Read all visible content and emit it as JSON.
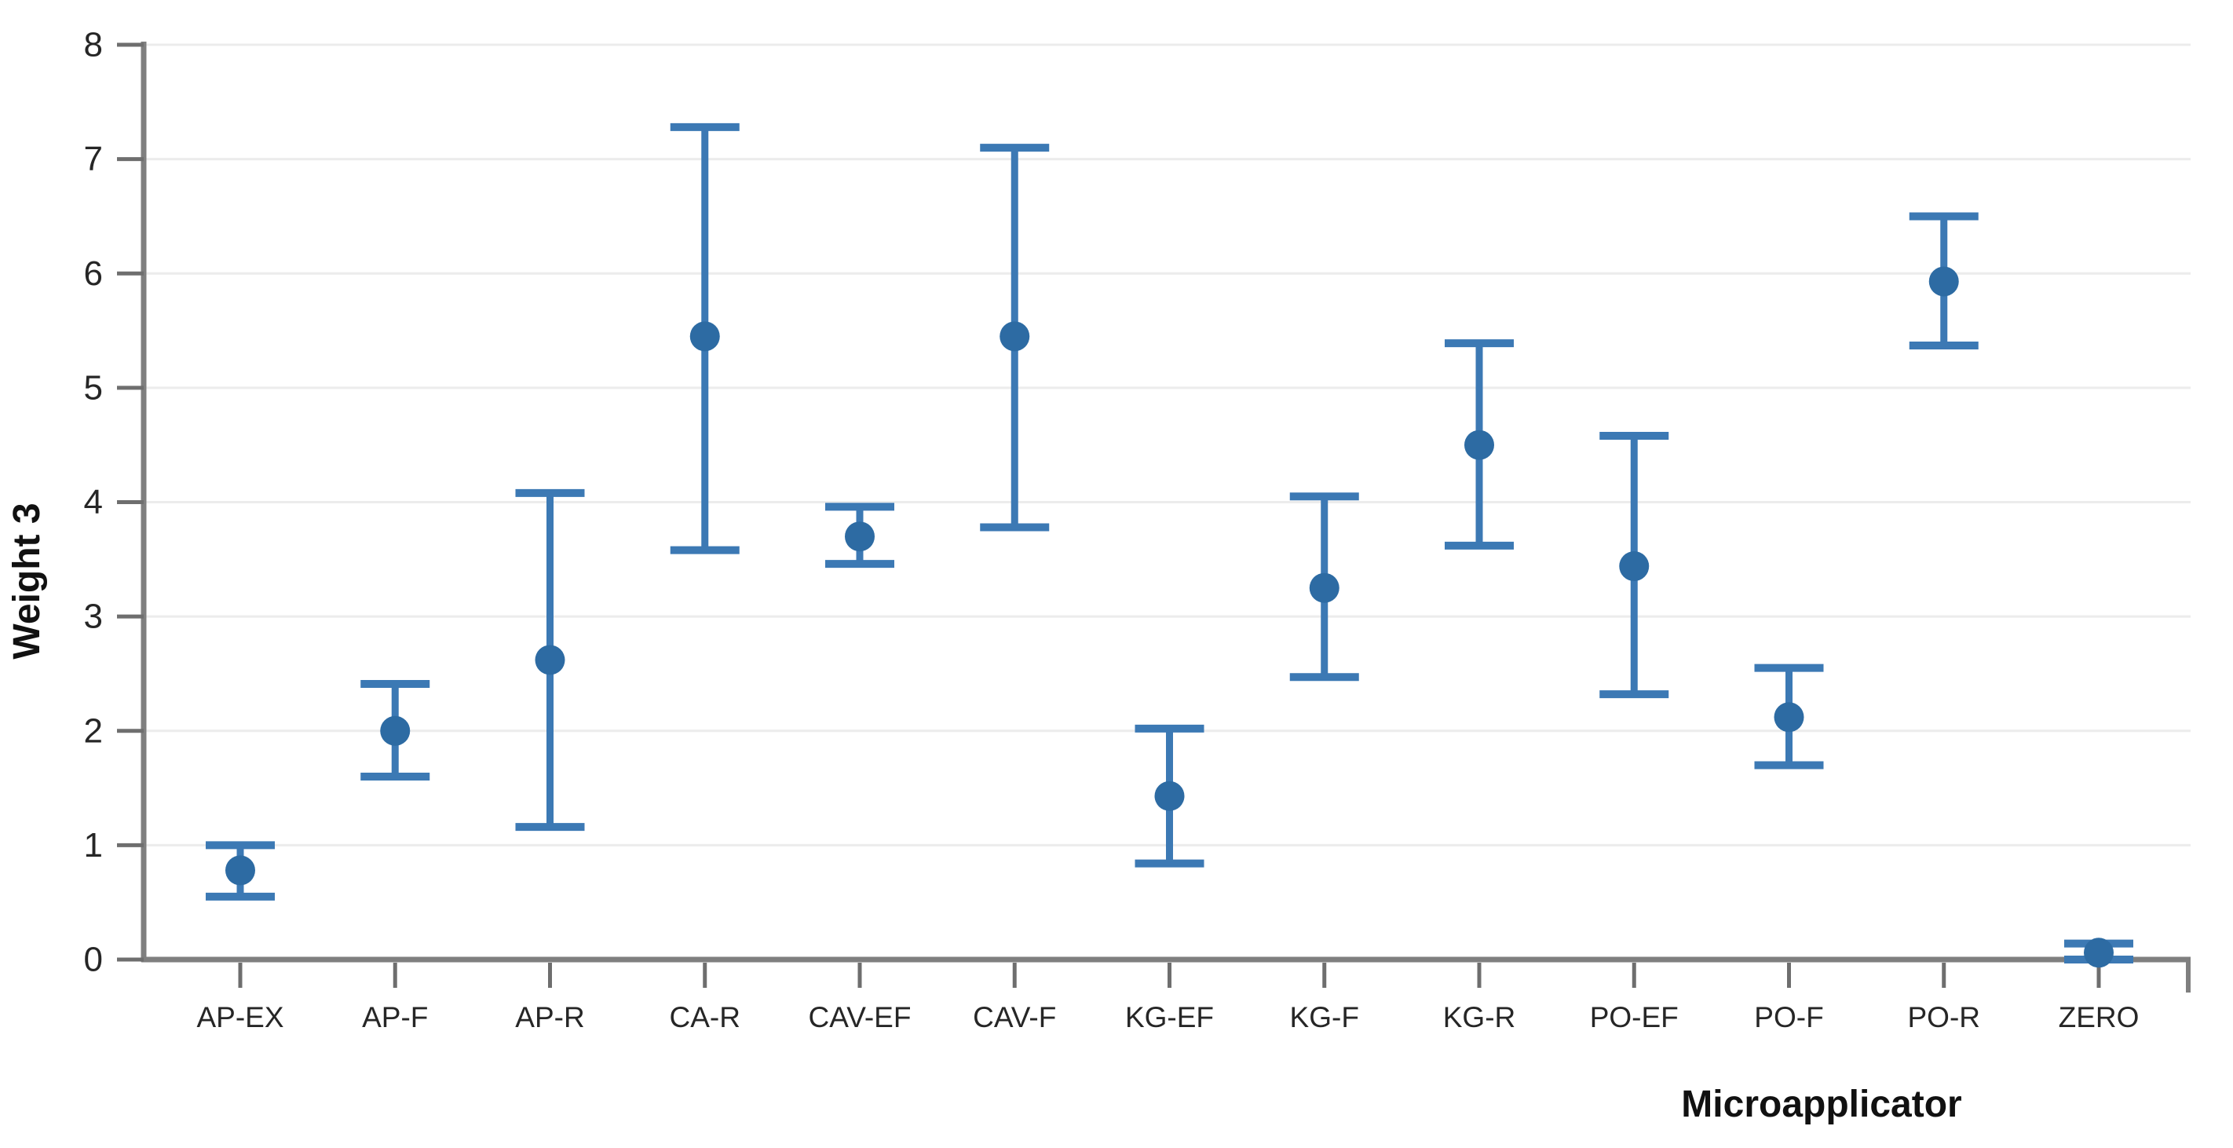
{
  "figure": {
    "background": "#ffffff"
  },
  "chart_data": {
    "type": "scatter",
    "subtype": "mean-with-error-bars",
    "title": "",
    "xlabel": "Microapplicator",
    "ylabel": "Weight 3",
    "categories": [
      "AP-EX",
      "AP-F",
      "AP-R",
      "CA-R",
      "CAV-EF",
      "CAV-F",
      "KG-EF",
      "KG-F",
      "KG-R",
      "PO-EF",
      "PO-F",
      "PO-R",
      "ZERO"
    ],
    "series": [
      {
        "name": "Weight 3 mean",
        "means": [
          0.78,
          2.0,
          2.62,
          5.45,
          3.7,
          5.45,
          1.43,
          3.25,
          4.5,
          3.44,
          2.12,
          5.93,
          0.06
        ],
        "lower": [
          0.55,
          1.6,
          1.16,
          3.58,
          3.46,
          3.78,
          0.84,
          2.47,
          3.62,
          2.32,
          1.7,
          5.37,
          0.0
        ],
        "upper": [
          1.0,
          2.41,
          4.08,
          7.28,
          3.96,
          7.1,
          2.02,
          4.05,
          5.39,
          4.58,
          2.55,
          6.5,
          0.14
        ]
      }
    ],
    "ylim": [
      0,
      8
    ],
    "yticks": [
      0,
      1,
      2,
      3,
      4,
      5,
      6,
      7,
      8
    ],
    "grid": "horizontal",
    "legend": "none",
    "colors": {
      "marker": "#2d6ba3",
      "error_bar": "#3c79b4",
      "axis_line": "#7f7f7f",
      "gridline": "#ececec",
      "tick_mark": "#6e6e6e",
      "tick_label": "#262626",
      "axis_title": "#111111"
    }
  }
}
